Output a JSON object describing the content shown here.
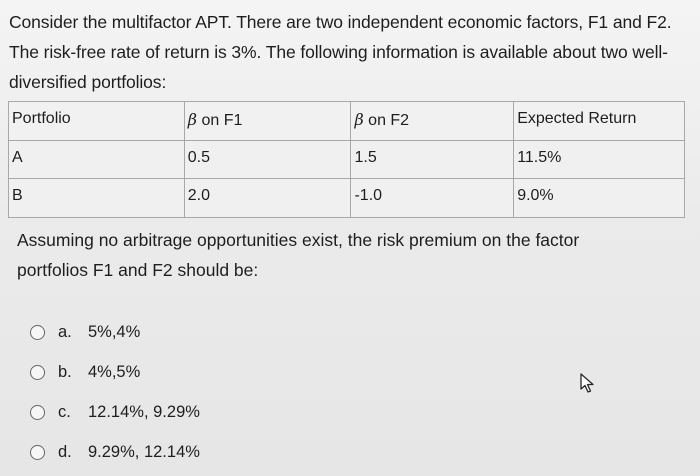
{
  "question": {
    "text": "Consider the multifactor APT. There are two independent economic factors, F1 and F2. The risk-free rate of return is 3%. The following information is available about two well-diversified portfolios:"
  },
  "table": {
    "headers": {
      "portfolio": "Portfolio",
      "beta_symbol": "β",
      "f1_suffix": " on F1",
      "f2_suffix": " on F2",
      "expected_return": "Expected Return"
    },
    "rows": [
      {
        "portfolio": "A",
        "beta_f1": "0.5",
        "beta_f2": "1.5",
        "expected_return": "11.5%"
      },
      {
        "portfolio": "B",
        "beta_f1": "2.0",
        "beta_f2": "-1.0",
        "expected_return": "9.0%"
      }
    ]
  },
  "prompt": {
    "text": "Assuming no arbitrage opportunities exist, the risk premium on the factor portfolios F1 and F2 should be:"
  },
  "options": [
    {
      "letter": "a.",
      "text": "5%,4%"
    },
    {
      "letter": "b.",
      "text": "4%,5%"
    },
    {
      "letter": "c.",
      "text": "12.14%, 9.29%"
    },
    {
      "letter": "d.",
      "text": "9.29%, 12.14%"
    }
  ],
  "icons": {
    "cursor": "mouse-pointer-icon"
  }
}
